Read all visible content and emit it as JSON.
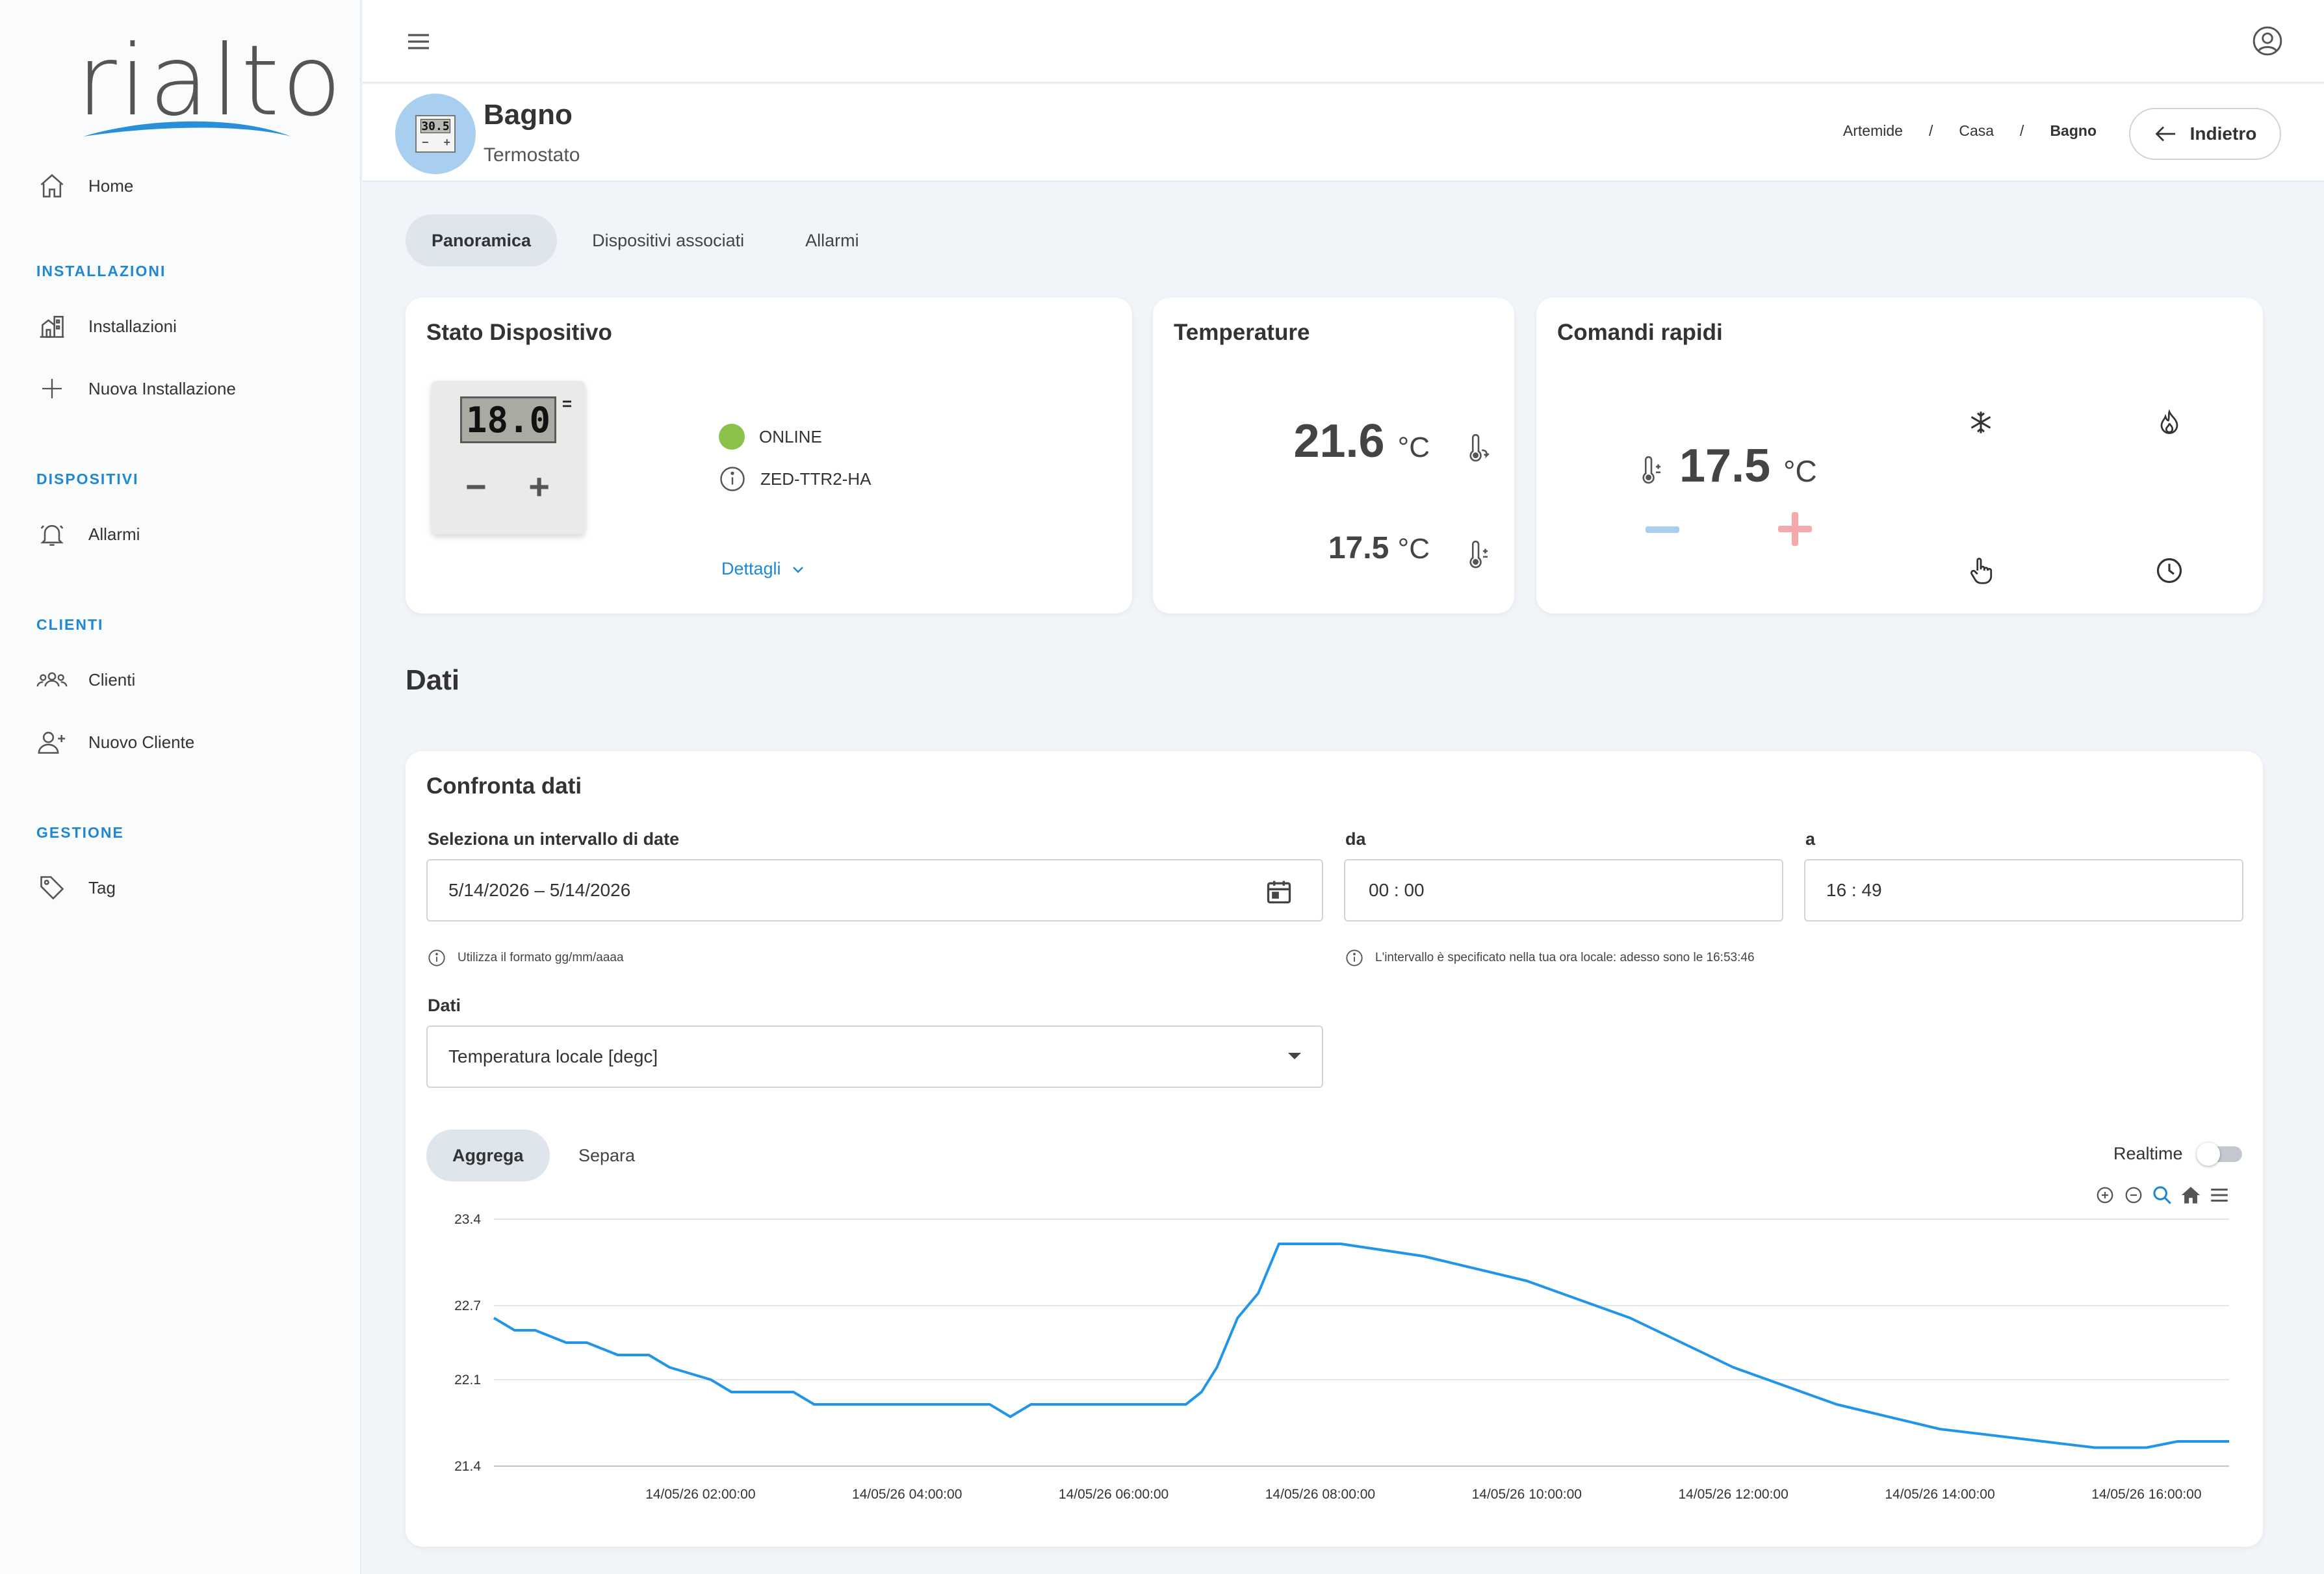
{
  "brand": {
    "logo_text": "rialto"
  },
  "sidebar": {
    "home": {
      "label": "Home",
      "icon": "home-icon"
    },
    "sections": [
      {
        "title": "INSTALLAZIONI"
      },
      {
        "title": "DISPOSITIVI"
      },
      {
        "title": "CLIENTI"
      },
      {
        "title": "GESTIONE"
      }
    ],
    "items": [
      {
        "label": "Installazioni",
        "icon": "building-icon"
      },
      {
        "label": "Nuova Installazione",
        "icon": "plus-icon"
      },
      {
        "label": "Allarmi",
        "icon": "bell-icon"
      },
      {
        "label": "Clienti",
        "icon": "group-icon"
      },
      {
        "label": "Nuovo Cliente",
        "icon": "add-user-icon"
      },
      {
        "label": "Tag",
        "icon": "tag-icon"
      }
    ]
  },
  "header": {
    "device_name": "Bagno",
    "device_type": "Termostato",
    "avatar_lcd": "30.5",
    "breadcrumb": [
      "Artemide",
      "Casa",
      "Bagno"
    ],
    "breadcrumb_sep": "/",
    "back_label": "Indietro"
  },
  "tabs": [
    {
      "label": "Panoramica",
      "active": true
    },
    {
      "label": "Dispositivi associati",
      "active": false
    },
    {
      "label": "Allarmi",
      "active": false
    }
  ],
  "device_status": {
    "title": "Stato Dispositivo",
    "lcd_value": "18.0",
    "minus": "−",
    "plus": "+",
    "status": "ONLINE",
    "model": "ZED-TTR2-HA",
    "details_label": "Dettagli",
    "status_color": "#8bc34a"
  },
  "temperatures": {
    "title": "Temperature",
    "ambient_value": "21.6",
    "setpoint_value": "17.5",
    "unit": "°C"
  },
  "quick_commands": {
    "title": "Comandi rapidi",
    "setpoint": "17.5",
    "unit": "°C",
    "modes": [
      "snowflake-icon",
      "flame-icon",
      "hand-icon",
      "clock-icon"
    ]
  },
  "data_section": {
    "title": "Dati",
    "compare_title": "Confronta dati",
    "date_range_label": "Seleziona un intervallo di date",
    "date_range_value": "5/14/2026 – 5/14/2026",
    "date_hint": "Utilizza il formato gg/mm/aaaa",
    "from_label": "da",
    "from_value": "00 : 00",
    "to_label": "a",
    "to_value": "16 : 49",
    "time_hint": "L'intervallo è specificato nella tua ora locale: adesso sono le 16:53:46",
    "data_label": "Dati",
    "data_value": "Temperatura locale [degc]",
    "aggregate_label": "Aggrega",
    "separate_label": "Separa",
    "realtime_label": "Realtime",
    "realtime_on": false
  },
  "chart_data": {
    "type": "line",
    "ylim": [
      21.4,
      23.4
    ],
    "yticks": [
      "23.4",
      "22.7",
      "22.1",
      "21.4"
    ],
    "ytick_values": [
      23.4,
      22.7,
      22.1,
      21.4
    ],
    "xticks": [
      "14/05/26 02:00:00",
      "14/05/26 04:00:00",
      "14/05/26 06:00:00",
      "14/05/26 08:00:00",
      "14/05/26 10:00:00",
      "14/05/26 12:00:00",
      "14/05/26 14:00:00",
      "14/05/26 16:00:00"
    ],
    "xtick_hours": [
      2,
      4,
      6,
      8,
      10,
      12,
      14,
      16
    ],
    "xlim_hours": [
      0,
      16.8
    ],
    "grid": true,
    "line_color": "#2196e8",
    "series": [
      {
        "hours": [
          0,
          0.2,
          0.4,
          0.7,
          0.9,
          1.2,
          1.5,
          1.7,
          2.1,
          2.3,
          2.5,
          2.9,
          3.1,
          3.3,
          3.8,
          4.3,
          4.8,
          5.0,
          5.2,
          5.5,
          6.0,
          6.5,
          6.7,
          6.85,
          7.0,
          7.1,
          7.2,
          7.4,
          7.6,
          7.8,
          8.2,
          9.0,
          10.0,
          11.0,
          12.0,
          13.0,
          14.0,
          15.0,
          15.5,
          16.0,
          16.3,
          16.8
        ],
        "y": [
          22.6,
          22.5,
          22.5,
          22.4,
          22.4,
          22.3,
          22.3,
          22.2,
          22.1,
          22.0,
          22.0,
          22.0,
          21.9,
          21.9,
          21.9,
          21.9,
          21.9,
          21.8,
          21.9,
          21.9,
          21.9,
          21.9,
          21.9,
          22.0,
          22.2,
          22.4,
          22.6,
          22.8,
          23.2,
          23.2,
          23.2,
          23.1,
          22.9,
          22.6,
          22.2,
          21.9,
          21.7,
          21.6,
          21.55,
          21.55,
          21.6,
          21.6
        ]
      }
    ]
  }
}
